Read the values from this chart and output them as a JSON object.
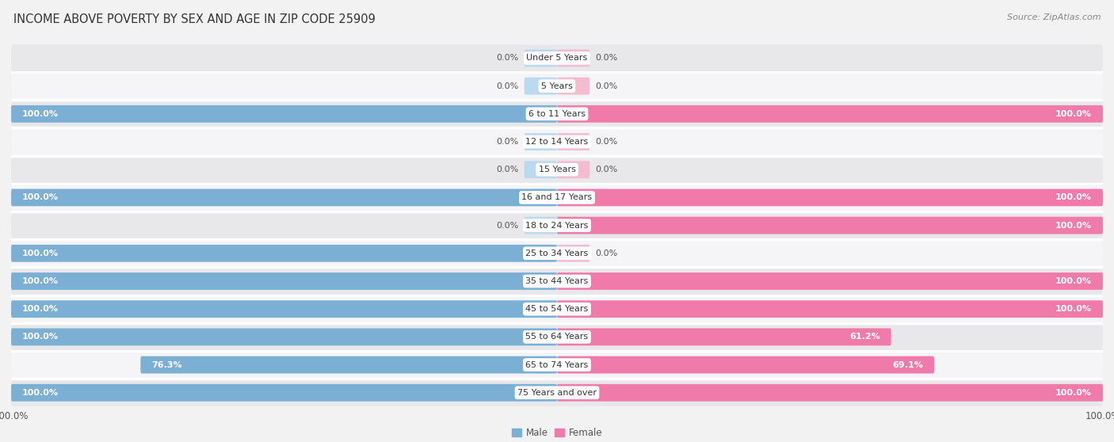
{
  "title": "INCOME ABOVE POVERTY BY SEX AND AGE IN ZIP CODE 25909",
  "source": "Source: ZipAtlas.com",
  "categories": [
    "Under 5 Years",
    "5 Years",
    "6 to 11 Years",
    "12 to 14 Years",
    "15 Years",
    "16 and 17 Years",
    "18 to 24 Years",
    "25 to 34 Years",
    "35 to 44 Years",
    "45 to 54 Years",
    "55 to 64 Years",
    "65 to 74 Years",
    "75 Years and over"
  ],
  "male_values": [
    0.0,
    0.0,
    100.0,
    0.0,
    0.0,
    100.0,
    0.0,
    100.0,
    100.0,
    100.0,
    100.0,
    76.3,
    100.0
  ],
  "female_values": [
    0.0,
    0.0,
    100.0,
    0.0,
    0.0,
    100.0,
    100.0,
    0.0,
    100.0,
    100.0,
    61.2,
    69.1,
    100.0
  ],
  "male_color": "#7BAFD4",
  "male_color_light": "#BBDAEE",
  "female_color": "#F07BAA",
  "female_color_light": "#F5BBCE",
  "row_color_dark": "#e8e8ea",
  "row_color_light": "#f5f5f7",
  "sep_color": "#ffffff",
  "label_pill_color": "#ffffff",
  "bar_height": 0.62,
  "stub_size": 6.0,
  "xlim_left": -100,
  "xlim_right": 100,
  "label_fontsize": 8.0,
  "title_fontsize": 10.5,
  "source_fontsize": 8.0,
  "legend_fontsize": 8.5,
  "tick_fontsize": 8.5
}
